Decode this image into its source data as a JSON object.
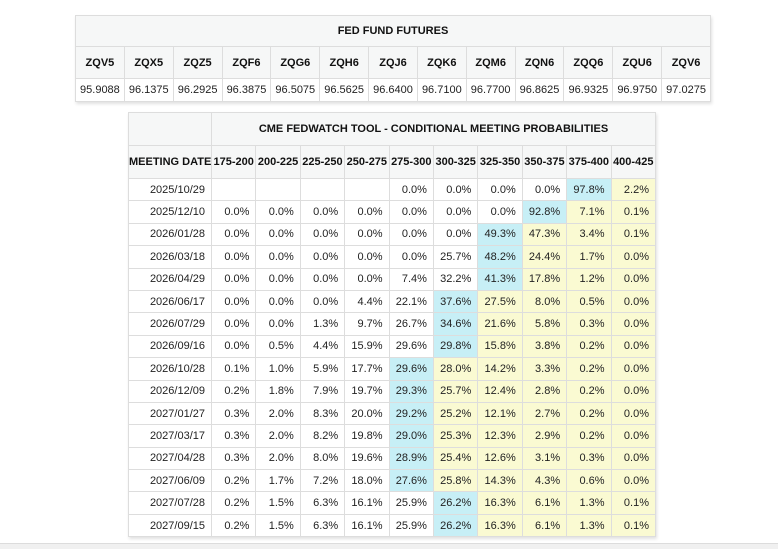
{
  "futures_table": {
    "title": "FED FUND FUTURES",
    "columns": [
      "ZQV5",
      "ZQX5",
      "ZQZ5",
      "ZQF6",
      "ZQG6",
      "ZQH6",
      "ZQJ6",
      "ZQK6",
      "ZQM6",
      "ZQN6",
      "ZQQ6",
      "ZQU6",
      "ZQV6"
    ],
    "values": [
      "95.9088",
      "96.1375",
      "96.2925",
      "96.3875",
      "96.5075",
      "96.5625",
      "96.6400",
      "96.7100",
      "96.7700",
      "96.8625",
      "96.9325",
      "96.9750",
      "97.0275"
    ]
  },
  "fedwatch_table": {
    "title": "CME FEDWATCH TOOL - CONDITIONAL MEETING PROBABILITIES",
    "date_header": "MEETING DATE",
    "rate_columns": [
      "175-200",
      "200-225",
      "225-250",
      "250-275",
      "275-300",
      "300-325",
      "325-350",
      "350-375",
      "375-400",
      "400-425"
    ],
    "rows": [
      {
        "date": "2025/10/29",
        "values": [
          "",
          "",
          "",
          "",
          "0.0%",
          "0.0%",
          "0.0%",
          "0.0%",
          "97.8%",
          "2.2%"
        ],
        "highlight": 8
      },
      {
        "date": "2025/12/10",
        "values": [
          "0.0%",
          "0.0%",
          "0.0%",
          "0.0%",
          "0.0%",
          "0.0%",
          "0.0%",
          "92.8%",
          "7.1%",
          "0.1%"
        ],
        "highlight": 7
      },
      {
        "date": "2026/01/28",
        "values": [
          "0.0%",
          "0.0%",
          "0.0%",
          "0.0%",
          "0.0%",
          "0.0%",
          "49.3%",
          "47.3%",
          "3.4%",
          "0.1%"
        ],
        "highlight": 6
      },
      {
        "date": "2026/03/18",
        "values": [
          "0.0%",
          "0.0%",
          "0.0%",
          "0.0%",
          "0.0%",
          "25.7%",
          "48.2%",
          "24.4%",
          "1.7%",
          "0.0%"
        ],
        "highlight": 6
      },
      {
        "date": "2026/04/29",
        "values": [
          "0.0%",
          "0.0%",
          "0.0%",
          "0.0%",
          "7.4%",
          "32.2%",
          "41.3%",
          "17.8%",
          "1.2%",
          "0.0%"
        ],
        "highlight": 6
      },
      {
        "date": "2026/06/17",
        "values": [
          "0.0%",
          "0.0%",
          "0.0%",
          "4.4%",
          "22.1%",
          "37.6%",
          "27.5%",
          "8.0%",
          "0.5%",
          "0.0%"
        ],
        "highlight": 5
      },
      {
        "date": "2026/07/29",
        "values": [
          "0.0%",
          "0.0%",
          "1.3%",
          "9.7%",
          "26.7%",
          "34.6%",
          "21.6%",
          "5.8%",
          "0.3%",
          "0.0%"
        ],
        "highlight": 5
      },
      {
        "date": "2026/09/16",
        "values": [
          "0.0%",
          "0.5%",
          "4.4%",
          "15.9%",
          "29.6%",
          "29.8%",
          "15.8%",
          "3.8%",
          "0.2%",
          "0.0%"
        ],
        "highlight": 5
      },
      {
        "date": "2026/10/28",
        "values": [
          "0.1%",
          "1.0%",
          "5.9%",
          "17.7%",
          "29.6%",
          "28.0%",
          "14.2%",
          "3.3%",
          "0.2%",
          "0.0%"
        ],
        "highlight": 4
      },
      {
        "date": "2026/12/09",
        "values": [
          "0.2%",
          "1.8%",
          "7.9%",
          "19.7%",
          "29.3%",
          "25.7%",
          "12.4%",
          "2.8%",
          "0.2%",
          "0.0%"
        ],
        "highlight": 4
      },
      {
        "date": "2027/01/27",
        "values": [
          "0.3%",
          "2.0%",
          "8.3%",
          "20.0%",
          "29.2%",
          "25.2%",
          "12.1%",
          "2.7%",
          "0.2%",
          "0.0%"
        ],
        "highlight": 4
      },
      {
        "date": "2027/03/17",
        "values": [
          "0.3%",
          "2.0%",
          "8.2%",
          "19.8%",
          "29.0%",
          "25.3%",
          "12.3%",
          "2.9%",
          "0.2%",
          "0.0%"
        ],
        "highlight": 4
      },
      {
        "date": "2027/04/28",
        "values": [
          "0.3%",
          "2.0%",
          "8.0%",
          "19.6%",
          "28.9%",
          "25.4%",
          "12.6%",
          "3.1%",
          "0.3%",
          "0.0%"
        ],
        "highlight": 4
      },
      {
        "date": "2027/06/09",
        "values": [
          "0.2%",
          "1.7%",
          "7.2%",
          "18.0%",
          "27.6%",
          "25.8%",
          "14.3%",
          "4.3%",
          "0.6%",
          "0.0%"
        ],
        "highlight": 4
      },
      {
        "date": "2027/07/28",
        "values": [
          "0.2%",
          "1.5%",
          "6.3%",
          "16.1%",
          "25.9%",
          "26.2%",
          "16.3%",
          "6.1%",
          "1.3%",
          "0.1%"
        ],
        "highlight": 5
      },
      {
        "date": "2027/09/15",
        "values": [
          "0.2%",
          "1.5%",
          "6.3%",
          "16.1%",
          "25.9%",
          "26.2%",
          "16.3%",
          "6.1%",
          "1.3%",
          "0.1%"
        ],
        "highlight": 5
      }
    ]
  },
  "colors": {
    "highlight_cyan": "#c7eff6",
    "tail_yellow": "#fafad2",
    "header_bg": "#f6f7f7",
    "border": "#dddddd"
  }
}
